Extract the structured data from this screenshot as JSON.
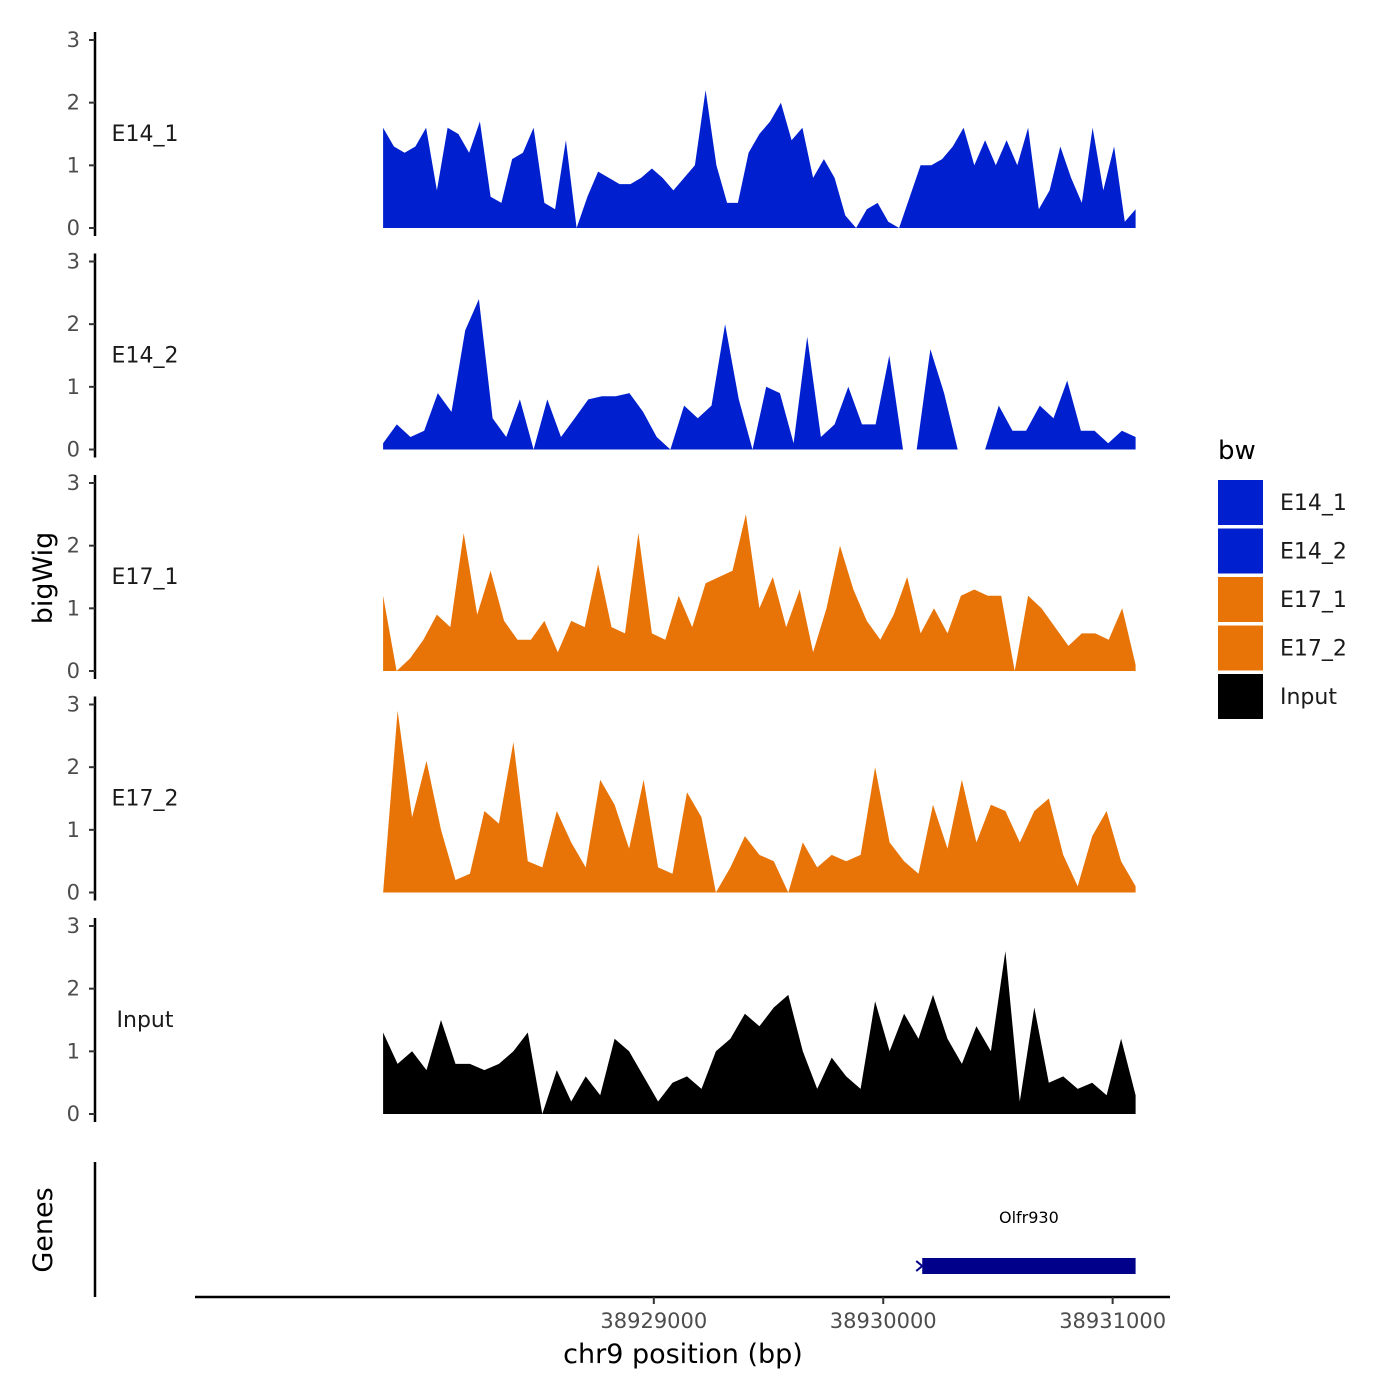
{
  "chart_data": {
    "type": "area",
    "chromosome": "chr9",
    "xlabel": "chr9 position (bp)",
    "ylabel": "bigWig",
    "genes_label": "Genes",
    "xlim": [
      38927000,
      38931250
    ],
    "data_xrange": [
      38927820,
      38931100
    ],
    "ylim": [
      0,
      3
    ],
    "yticks": [
      0,
      1,
      2,
      3
    ],
    "xticks": [
      38929000,
      38930000,
      38931000
    ],
    "xtick_labels": [
      "38929000",
      "38930000",
      "38931000"
    ],
    "legend": {
      "title": "bw",
      "position": "right",
      "entries": [
        {
          "label": "E14_1",
          "color": "#0020D0"
        },
        {
          "label": "E14_2",
          "color": "#0020D0"
        },
        {
          "label": "E17_1",
          "color": "#E87408"
        },
        {
          "label": "E17_2",
          "color": "#E87408"
        },
        {
          "label": "Input",
          "color": "#000000"
        }
      ]
    },
    "series": [
      {
        "name": "E14_1",
        "color": "#0020D0",
        "values": [
          1.6,
          1.3,
          1.2,
          1.3,
          1.6,
          0.6,
          1.6,
          1.5,
          1.2,
          1.7,
          0.5,
          0.4,
          1.1,
          1.2,
          1.6,
          0.4,
          0.3,
          1.4,
          0.0,
          0.5,
          0.9,
          0.8,
          0.7,
          0.7,
          0.8,
          0.95,
          0.8,
          0.6,
          0.8,
          1.0,
          2.2,
          1.0,
          0.4,
          0.4,
          1.2,
          1.5,
          1.7,
          2.0,
          1.4,
          1.6,
          0.8,
          1.1,
          0.8,
          0.2,
          0.0,
          0.3,
          0.4,
          0.1,
          0.0,
          0.5,
          1.0,
          1.0,
          1.1,
          1.3,
          1.6,
          1.0,
          1.4,
          1.0,
          1.4,
          1.0,
          1.6,
          0.3,
          0.6,
          1.3,
          0.8,
          0.4,
          1.6,
          0.6,
          1.3,
          0.1,
          0.3
        ]
      },
      {
        "name": "E14_2",
        "color": "#0020D0",
        "values": [
          0.1,
          0.4,
          0.2,
          0.3,
          0.9,
          0.6,
          1.9,
          2.4,
          0.5,
          0.2,
          0.8,
          0.0,
          0.8,
          0.2,
          0.5,
          0.8,
          0.85,
          0.85,
          0.9,
          0.6,
          0.2,
          0.0,
          0.7,
          0.5,
          0.7,
          2.0,
          0.8,
          0.0,
          1.0,
          0.9,
          0.1,
          1.8,
          0.2,
          0.4,
          1.0,
          0.4,
          0.4,
          1.5,
          0.0,
          0.0,
          1.6,
          0.9,
          0.0,
          0.0,
          0.0,
          0.7,
          0.3,
          0.3,
          0.7,
          0.5,
          1.1,
          0.3,
          0.3,
          0.1,
          0.3,
          0.2
        ]
      },
      {
        "name": "E17_1",
        "color": "#E87408",
        "values": [
          1.2,
          0.0,
          0.2,
          0.5,
          0.9,
          0.7,
          2.2,
          0.9,
          1.6,
          0.8,
          0.5,
          0.5,
          0.8,
          0.3,
          0.8,
          0.7,
          1.7,
          0.7,
          0.6,
          2.2,
          0.6,
          0.5,
          1.2,
          0.7,
          1.4,
          1.5,
          1.6,
          2.5,
          1.0,
          1.5,
          0.7,
          1.3,
          0.3,
          1.0,
          2.0,
          1.3,
          0.8,
          0.5,
          0.9,
          1.5,
          0.6,
          1.0,
          0.6,
          1.2,
          1.3,
          1.2,
          1.2,
          0.0,
          1.2,
          1.0,
          0.7,
          0.4,
          0.6,
          0.6,
          0.5,
          1.0,
          0.1
        ]
      },
      {
        "name": "E17_2",
        "color": "#E87408",
        "values": [
          0.0,
          2.9,
          1.2,
          2.1,
          1.0,
          0.2,
          0.3,
          1.3,
          1.1,
          2.4,
          0.5,
          0.4,
          1.3,
          0.8,
          0.4,
          1.8,
          1.4,
          0.7,
          1.8,
          0.4,
          0.3,
          1.6,
          1.2,
          0.0,
          0.4,
          0.9,
          0.6,
          0.5,
          0.0,
          0.8,
          0.4,
          0.6,
          0.5,
          0.6,
          2.0,
          0.8,
          0.5,
          0.3,
          1.4,
          0.7,
          1.8,
          0.8,
          1.4,
          1.3,
          0.8,
          1.3,
          1.5,
          0.6,
          0.1,
          0.9,
          1.3,
          0.5,
          0.1
        ]
      },
      {
        "name": "Input",
        "color": "#000000",
        "values": [
          1.3,
          0.8,
          1.0,
          0.7,
          1.5,
          0.8,
          0.8,
          0.7,
          0.8,
          1.0,
          1.3,
          0.0,
          0.7,
          0.2,
          0.6,
          0.3,
          1.2,
          1.0,
          0.6,
          0.2,
          0.5,
          0.6,
          0.4,
          1.0,
          1.2,
          1.6,
          1.4,
          1.7,
          1.9,
          1.0,
          0.4,
          0.9,
          0.6,
          0.4,
          1.8,
          1.0,
          1.6,
          1.2,
          1.9,
          1.2,
          0.8,
          1.4,
          1.0,
          2.6,
          0.2,
          1.7,
          0.5,
          0.6,
          0.4,
          0.5,
          0.3,
          1.2,
          0.3
        ]
      }
    ],
    "genes": [
      {
        "name": "Olfr930",
        "start": 38930170,
        "end": 38931100,
        "strand": "+",
        "color": "#00008B"
      }
    ]
  }
}
